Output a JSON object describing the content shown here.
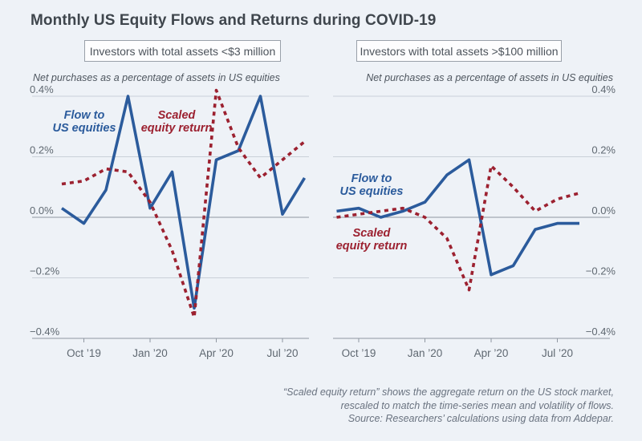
{
  "title": "Monthly US Equity Flows and Returns during COVID-19",
  "panels": [
    {
      "header": "Investors with total assets <$3 million",
      "axis_note": "Net purchases as a percentage of assets in US equities",
      "flow_label": [
        "Flow to",
        "US equities"
      ],
      "return_label": [
        "Scaled",
        "equity return"
      ]
    },
    {
      "header": "Investors with total assets >$100 million",
      "axis_note": "Net purchases as a percentage of assets in US equities",
      "flow_label": [
        "Flow to",
        "US equities"
      ],
      "return_label": [
        "Scaled",
        "equity return"
      ]
    }
  ],
  "chart_data": [
    {
      "type": "line",
      "title": "Investors with total assets <$3 million",
      "ylabel": "Net purchases as a percentage of assets in US equities",
      "x": [
        "Sep 2019",
        "Oct 2019",
        "Nov 2019",
        "Dec 2019",
        "Jan 2020",
        "Feb 2020",
        "Mar 2020",
        "Apr 2020",
        "May 2020",
        "Jun 2020",
        "Jul 2020",
        "Aug 2020"
      ],
      "series": [
        {
          "name": "Flow to US equities",
          "color": "#2b5b9c",
          "style": "solid",
          "values": [
            0.03,
            -0.02,
            0.09,
            0.4,
            0.03,
            0.15,
            -0.3,
            0.19,
            0.22,
            0.4,
            0.01,
            0.13
          ]
        },
        {
          "name": "Scaled equity return",
          "color": "#9c2130",
          "style": "dashed",
          "values": [
            0.11,
            0.12,
            0.16,
            0.15,
            0.05,
            -0.11,
            -0.33,
            0.42,
            0.23,
            0.13,
            0.19,
            0.25
          ]
        }
      ],
      "xtick_labels": [
        "Oct ’19",
        "Jan ’20",
        "Apr ’20",
        "Jul ’20"
      ],
      "xtick_indices": [
        1,
        4,
        7,
        10
      ],
      "ytick_labels": [
        "0.4%",
        "0.2%",
        "0.0%",
        "−0.2%",
        "−0.4%"
      ],
      "ytick_values": [
        0.4,
        0.2,
        0.0,
        -0.2,
        -0.4
      ],
      "ylim": [
        -0.4,
        0.4
      ],
      "y_label_side": "left",
      "grid": true,
      "legend_position": "in-plot text labels"
    },
    {
      "type": "line",
      "title": "Investors with total assets >$100 million",
      "ylabel": "Net purchases as a percentage of assets in US equities",
      "x": [
        "Sep 2019",
        "Oct 2019",
        "Nov 2019",
        "Dec 2019",
        "Jan 2020",
        "Feb 2020",
        "Mar 2020",
        "Apr 2020",
        "May 2020",
        "Jun 2020",
        "Jul 2020",
        "Aug 2020"
      ],
      "series": [
        {
          "name": "Flow to US equities",
          "color": "#2b5b9c",
          "style": "solid",
          "values": [
            0.02,
            0.03,
            0.0,
            0.02,
            0.05,
            0.14,
            0.19,
            -0.19,
            -0.16,
            -0.04,
            -0.02,
            -0.02
          ]
        },
        {
          "name": "Scaled equity return",
          "color": "#9c2130",
          "style": "dashed",
          "values": [
            0.0,
            0.01,
            0.02,
            0.03,
            0.0,
            -0.07,
            -0.24,
            0.17,
            0.1,
            0.02,
            0.06,
            0.08
          ]
        }
      ],
      "xtick_labels": [
        "Oct ’19",
        "Jan ’20",
        "Apr ’20",
        "Jul ’20"
      ],
      "xtick_indices": [
        1,
        4,
        7,
        10
      ],
      "ytick_labels": [
        "0.4%",
        "0.2%",
        "0.0%",
        "−0.2%",
        "−0.4%"
      ],
      "ytick_values": [
        0.4,
        0.2,
        0.0,
        -0.2,
        -0.4
      ],
      "ylim": [
        -0.4,
        0.4
      ],
      "y_label_side": "right",
      "grid": true,
      "legend_position": "in-plot text labels"
    }
  ],
  "footnote": {
    "lines": [
      "“Scaled equity return” shows the aggregate return on the US stock market,",
      "rescaled to match the time-series mean and volatility of flows.",
      "Source: Researchers’ calculations using data from Addepar."
    ]
  },
  "colors": {
    "flow": "#2b5b9c",
    "return": "#9c2130",
    "background": "#eef2f7",
    "grid": "#cad0d8",
    "axis": "#8f97a1",
    "title_text": "#3f464d",
    "tick_text": "#5f6871",
    "footnote_text": "#6a7380"
  }
}
